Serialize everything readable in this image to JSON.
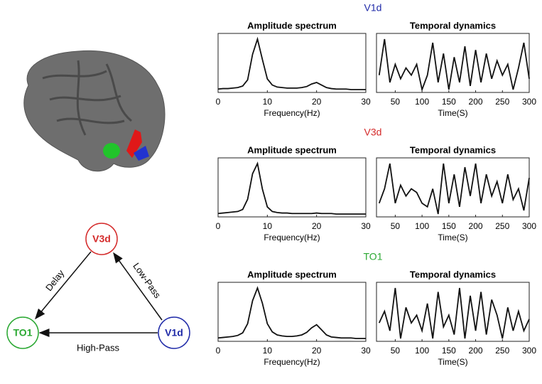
{
  "sections": [
    {
      "label": "V1d",
      "color": "#1f2aa8"
    },
    {
      "label": "V3d",
      "color": "#d42a2a"
    },
    {
      "label": "TO1",
      "color": "#2aa832"
    }
  ],
  "chart_data": [
    {
      "type": "line",
      "title": "Amplitude spectrum",
      "xlabel": "Frequency(Hz)",
      "xlim": [
        0,
        30
      ],
      "xticks": [
        0,
        10,
        20,
        30
      ],
      "x": [
        0,
        1,
        2,
        3,
        4,
        5,
        6,
        7,
        8,
        9,
        10,
        11,
        12,
        13,
        14,
        15,
        16,
        17,
        18,
        19,
        20,
        21,
        22,
        23,
        24,
        25,
        26,
        27,
        28,
        29,
        30
      ],
      "values": [
        0.02,
        0.03,
        0.03,
        0.04,
        0.05,
        0.08,
        0.2,
        0.7,
        1.0,
        0.6,
        0.22,
        0.1,
        0.06,
        0.05,
        0.04,
        0.04,
        0.04,
        0.05,
        0.07,
        0.12,
        0.15,
        0.1,
        0.05,
        0.03,
        0.02,
        0.02,
        0.02,
        0.01,
        0.01,
        0.01,
        0.01
      ]
    },
    {
      "type": "line",
      "title": "Temporal dynamics",
      "xlabel": "Time(S)",
      "xlim": [
        15,
        300
      ],
      "xticks": [
        50,
        100,
        150,
        200,
        250,
        300
      ],
      "x": [
        20,
        30,
        40,
        50,
        60,
        70,
        80,
        90,
        100,
        110,
        120,
        130,
        140,
        150,
        160,
        170,
        180,
        190,
        200,
        210,
        220,
        230,
        240,
        250,
        260,
        270,
        280,
        290,
        300
      ],
      "values": [
        0.4,
        0.9,
        0.3,
        0.55,
        0.35,
        0.5,
        0.4,
        0.55,
        0.2,
        0.4,
        0.85,
        0.3,
        0.7,
        0.2,
        0.65,
        0.3,
        0.8,
        0.25,
        0.75,
        0.3,
        0.7,
        0.35,
        0.6,
        0.4,
        0.55,
        0.2,
        0.5,
        0.85,
        0.35
      ]
    },
    {
      "type": "line",
      "title": "Amplitude spectrum",
      "xlabel": "Frequency(Hz)",
      "xlim": [
        0,
        30
      ],
      "xticks": [
        0,
        10,
        20,
        30
      ],
      "x": [
        0,
        1,
        2,
        3,
        4,
        5,
        6,
        7,
        8,
        9,
        10,
        11,
        12,
        13,
        14,
        15,
        16,
        17,
        18,
        19,
        20,
        21,
        22,
        23,
        24,
        25,
        26,
        27,
        28,
        29,
        30
      ],
      "values": [
        0.02,
        0.03,
        0.04,
        0.05,
        0.06,
        0.1,
        0.3,
        0.8,
        1.0,
        0.5,
        0.15,
        0.06,
        0.04,
        0.03,
        0.03,
        0.02,
        0.02,
        0.02,
        0.02,
        0.02,
        0.03,
        0.02,
        0.02,
        0.02,
        0.01,
        0.01,
        0.01,
        0.01,
        0.01,
        0.01,
        0.01
      ]
    },
    {
      "type": "line",
      "title": "Temporal dynamics",
      "xlabel": "Time(S)",
      "xlim": [
        15,
        300
      ],
      "xticks": [
        50,
        100,
        150,
        200,
        250,
        300
      ],
      "x": [
        20,
        30,
        40,
        50,
        60,
        70,
        80,
        90,
        100,
        110,
        120,
        130,
        140,
        150,
        160,
        170,
        180,
        190,
        200,
        210,
        220,
        230,
        240,
        250,
        260,
        270,
        280,
        290,
        300
      ],
      "values": [
        0.3,
        0.5,
        0.85,
        0.3,
        0.55,
        0.4,
        0.5,
        0.45,
        0.3,
        0.25,
        0.5,
        0.15,
        0.85,
        0.3,
        0.7,
        0.25,
        0.8,
        0.4,
        0.85,
        0.3,
        0.7,
        0.4,
        0.6,
        0.3,
        0.7,
        0.35,
        0.5,
        0.2,
        0.65
      ]
    },
    {
      "type": "line",
      "title": "Amplitude spectrum",
      "xlabel": "Frequency(Hz)",
      "xlim": [
        0,
        30
      ],
      "xticks": [
        0,
        10,
        20,
        30
      ],
      "x": [
        0,
        1,
        2,
        3,
        4,
        5,
        6,
        7,
        8,
        9,
        10,
        11,
        12,
        13,
        14,
        15,
        16,
        17,
        18,
        19,
        20,
        21,
        22,
        23,
        24,
        25,
        26,
        27,
        28,
        29,
        30
      ],
      "values": [
        0.02,
        0.03,
        0.04,
        0.05,
        0.07,
        0.12,
        0.3,
        0.75,
        1.0,
        0.7,
        0.3,
        0.14,
        0.08,
        0.06,
        0.05,
        0.05,
        0.06,
        0.08,
        0.13,
        0.22,
        0.28,
        0.18,
        0.08,
        0.04,
        0.03,
        0.02,
        0.02,
        0.02,
        0.01,
        0.01,
        0.01
      ]
    },
    {
      "type": "line",
      "title": "Temporal dynamics",
      "xlabel": "Time(S)",
      "xlim": [
        15,
        300
      ],
      "xticks": [
        50,
        100,
        150,
        200,
        250,
        300
      ],
      "x": [
        20,
        30,
        40,
        50,
        60,
        70,
        80,
        90,
        100,
        110,
        120,
        130,
        140,
        150,
        160,
        170,
        180,
        190,
        200,
        210,
        220,
        230,
        240,
        250,
        260,
        270,
        280,
        290,
        300
      ],
      "values": [
        0.4,
        0.55,
        0.3,
        0.85,
        0.2,
        0.6,
        0.4,
        0.5,
        0.3,
        0.65,
        0.2,
        0.8,
        0.35,
        0.5,
        0.25,
        0.85,
        0.2,
        0.75,
        0.3,
        0.8,
        0.25,
        0.7,
        0.5,
        0.2,
        0.6,
        0.3,
        0.55,
        0.3,
        0.45
      ]
    }
  ],
  "diagram": {
    "nodes": [
      "V3d",
      "TO1",
      "V1d"
    ],
    "edges": [
      "Delay",
      "Low-Pass",
      "High-Pass"
    ]
  }
}
